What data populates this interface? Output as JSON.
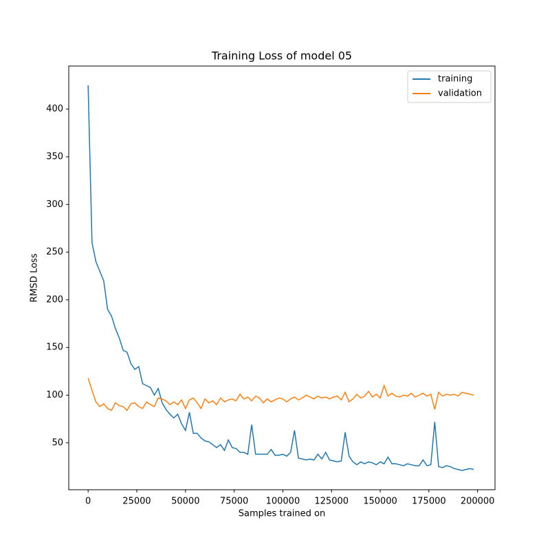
{
  "chart_data": {
    "type": "line",
    "title": "Training Loss of model 05",
    "x_label": "Samples trained on",
    "y_label": "RMSD Loss",
    "x": [
      0,
      2000,
      4000,
      6000,
      8000,
      10000,
      12000,
      14000,
      16000,
      18000,
      20000,
      22000,
      24000,
      26000,
      28000,
      30000,
      32000,
      34000,
      36000,
      38000,
      40000,
      42000,
      44000,
      46000,
      48000,
      50000,
      52000,
      54000,
      56000,
      58000,
      60000,
      62000,
      64000,
      66000,
      68000,
      70000,
      72000,
      74000,
      76000,
      78000,
      80000,
      82000,
      84000,
      86000,
      88000,
      90000,
      92000,
      94000,
      96000,
      98000,
      100000,
      102000,
      104000,
      106000,
      108000,
      110000,
      112000,
      114000,
      116000,
      118000,
      120000,
      122000,
      124000,
      126000,
      128000,
      130000,
      132000,
      134000,
      136000,
      138000,
      140000,
      142000,
      144000,
      146000,
      148000,
      150000,
      152000,
      154000,
      156000,
      158000,
      160000,
      162000,
      164000,
      166000,
      168000,
      170000,
      172000,
      174000,
      176000,
      178000,
      180000,
      182000,
      184000,
      186000,
      188000,
      190000,
      192000,
      194000,
      196000,
      198000
    ],
    "series": [
      {
        "name": "training",
        "color": "#1f77b4",
        "values": [
          425,
          260,
          240,
          230,
          220,
          190,
          183,
          170,
          160,
          147,
          145,
          133,
          127,
          130,
          112,
          110,
          108,
          100,
          107,
          92,
          85,
          80,
          76,
          80,
          70,
          63,
          82,
          60,
          60,
          55,
          52,
          51,
          48,
          45,
          48,
          42,
          53,
          45,
          44,
          40,
          40,
          38,
          69,
          38,
          38,
          38,
          38,
          43,
          37,
          37,
          38,
          36,
          40,
          63,
          34,
          33,
          32,
          33,
          32,
          38,
          33,
          40,
          32,
          31,
          30,
          31,
          61,
          36,
          30,
          27,
          30,
          28,
          30,
          29,
          27,
          30,
          28,
          35,
          28,
          28,
          27,
          26,
          28,
          27,
          26,
          26,
          32,
          26,
          27,
          72,
          25,
          24,
          26,
          25,
          23,
          22,
          21,
          22,
          23,
          22
        ]
      },
      {
        "name": "validation",
        "color": "#ff7f0e",
        "values": [
          118,
          105,
          93,
          88,
          91,
          86,
          84,
          92,
          89,
          88,
          84,
          91,
          92,
          88,
          86,
          93,
          90,
          88,
          97,
          96,
          94,
          90,
          93,
          90,
          95,
          86,
          95,
          97,
          92,
          86,
          96,
          92,
          94,
          90,
          97,
          93,
          95,
          96,
          94,
          101,
          96,
          98,
          94,
          99,
          97,
          92,
          96,
          93,
          95,
          97,
          96,
          93,
          96,
          98,
          95,
          97,
          100,
          98,
          96,
          99,
          97,
          98,
          96,
          98,
          99,
          95,
          103,
          93,
          96,
          101,
          97,
          99,
          104,
          98,
          101,
          97,
          110,
          99,
          102,
          99,
          98,
          100,
          99,
          102,
          98,
          100,
          102,
          99,
          101,
          85,
          103,
          99,
          101,
          100,
          101,
          99,
          103,
          102,
          101,
          100
        ]
      }
    ],
    "xlim": [
      -9950,
      208950
    ],
    "ylim": [
      0.8,
      445.2
    ],
    "xticks": [
      0,
      25000,
      50000,
      75000,
      100000,
      125000,
      150000,
      175000,
      200000
    ],
    "yticks": [
      50,
      100,
      150,
      200,
      250,
      300,
      350,
      400
    ],
    "legend": "upper right"
  }
}
